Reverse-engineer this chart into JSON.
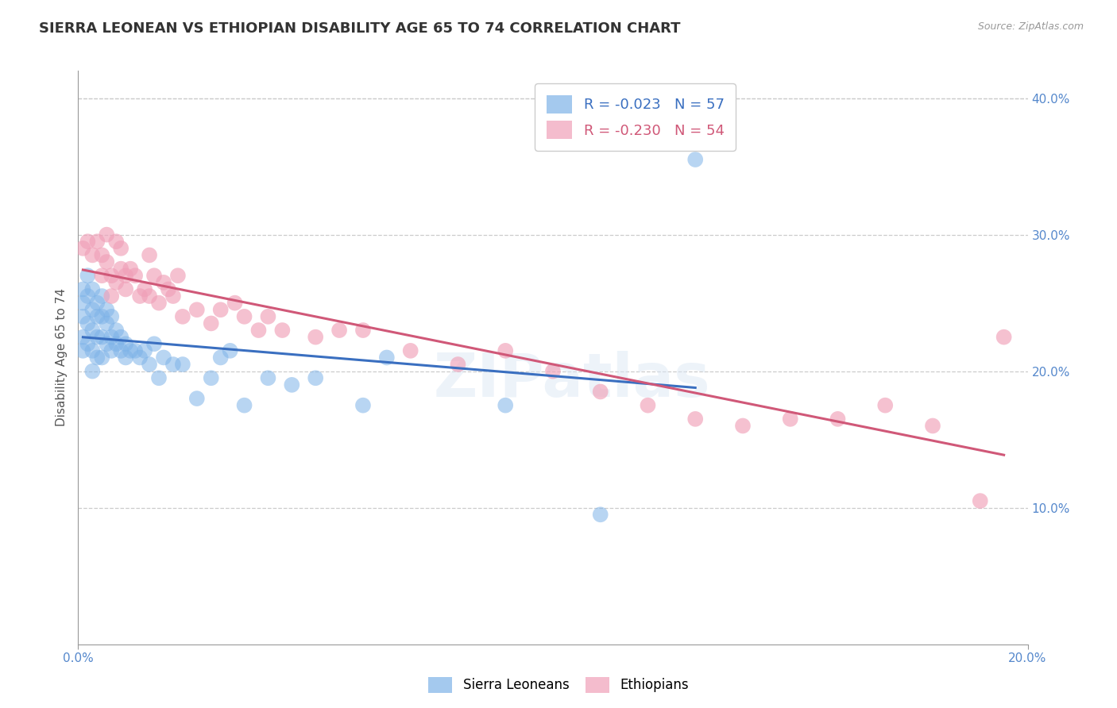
{
  "title": "SIERRA LEONEAN VS ETHIOPIAN DISABILITY AGE 65 TO 74 CORRELATION CHART",
  "source": "Source: ZipAtlas.com",
  "ylabel": "Disability Age 65 to 74",
  "xlim": [
    0.0,
    0.2
  ],
  "ylim": [
    0.0,
    0.42
  ],
  "xticks": [
    0.0,
    0.2
  ],
  "xtick_labels": [
    "0.0%",
    "20.0%"
  ],
  "yticks": [
    0.1,
    0.2,
    0.3,
    0.4
  ],
  "ytick_labels": [
    "10.0%",
    "20.0%",
    "30.0%",
    "40.0%"
  ],
  "sierra_color": "#7eb3e8",
  "ethiopian_color": "#f0a0b8",
  "sierra_line_color": "#3a6fc0",
  "ethiopian_line_color": "#d05878",
  "sierra_R": -0.023,
  "sierra_N": 57,
  "ethiopian_R": -0.23,
  "ethiopian_N": 54,
  "legend_label_1": "Sierra Leoneans",
  "legend_label_2": "Ethiopians",
  "background_color": "#ffffff",
  "grid_color": "#cccccc",
  "axis_color": "#999999",
  "tick_color": "#5588cc",
  "title_fontsize": 13,
  "label_fontsize": 11,
  "tick_fontsize": 11,
  "watermark": "ZIPatlas",
  "sierra_x": [
    0.001,
    0.001,
    0.001,
    0.001,
    0.001,
    0.002,
    0.002,
    0.002,
    0.002,
    0.003,
    0.003,
    0.003,
    0.003,
    0.003,
    0.004,
    0.004,
    0.004,
    0.004,
    0.005,
    0.005,
    0.005,
    0.005,
    0.006,
    0.006,
    0.006,
    0.007,
    0.007,
    0.007,
    0.008,
    0.008,
    0.009,
    0.009,
    0.01,
    0.01,
    0.011,
    0.012,
    0.013,
    0.014,
    0.015,
    0.016,
    0.017,
    0.018,
    0.02,
    0.022,
    0.025,
    0.028,
    0.03,
    0.032,
    0.035,
    0.04,
    0.045,
    0.05,
    0.06,
    0.065,
    0.09,
    0.11,
    0.13
  ],
  "sierra_y": [
    0.25,
    0.26,
    0.24,
    0.225,
    0.215,
    0.27,
    0.255,
    0.235,
    0.22,
    0.26,
    0.245,
    0.23,
    0.215,
    0.2,
    0.25,
    0.24,
    0.225,
    0.21,
    0.255,
    0.24,
    0.225,
    0.21,
    0.245,
    0.235,
    0.22,
    0.24,
    0.225,
    0.215,
    0.23,
    0.22,
    0.225,
    0.215,
    0.22,
    0.21,
    0.215,
    0.215,
    0.21,
    0.215,
    0.205,
    0.22,
    0.195,
    0.21,
    0.205,
    0.205,
    0.18,
    0.195,
    0.21,
    0.215,
    0.175,
    0.195,
    0.19,
    0.195,
    0.175,
    0.21,
    0.175,
    0.095,
    0.355
  ],
  "ethiopian_x": [
    0.001,
    0.002,
    0.003,
    0.004,
    0.005,
    0.005,
    0.006,
    0.006,
    0.007,
    0.007,
    0.008,
    0.008,
    0.009,
    0.009,
    0.01,
    0.01,
    0.011,
    0.012,
    0.013,
    0.014,
    0.015,
    0.015,
    0.016,
    0.017,
    0.018,
    0.019,
    0.02,
    0.021,
    0.022,
    0.025,
    0.028,
    0.03,
    0.033,
    0.035,
    0.038,
    0.04,
    0.043,
    0.05,
    0.055,
    0.06,
    0.07,
    0.08,
    0.09,
    0.1,
    0.11,
    0.12,
    0.13,
    0.14,
    0.15,
    0.16,
    0.17,
    0.18,
    0.19,
    0.195
  ],
  "ethiopian_y": [
    0.29,
    0.295,
    0.285,
    0.295,
    0.27,
    0.285,
    0.3,
    0.28,
    0.27,
    0.255,
    0.295,
    0.265,
    0.29,
    0.275,
    0.27,
    0.26,
    0.275,
    0.27,
    0.255,
    0.26,
    0.285,
    0.255,
    0.27,
    0.25,
    0.265,
    0.26,
    0.255,
    0.27,
    0.24,
    0.245,
    0.235,
    0.245,
    0.25,
    0.24,
    0.23,
    0.24,
    0.23,
    0.225,
    0.23,
    0.23,
    0.215,
    0.205,
    0.215,
    0.2,
    0.185,
    0.175,
    0.165,
    0.16,
    0.165,
    0.165,
    0.175,
    0.16,
    0.105,
    0.225
  ]
}
